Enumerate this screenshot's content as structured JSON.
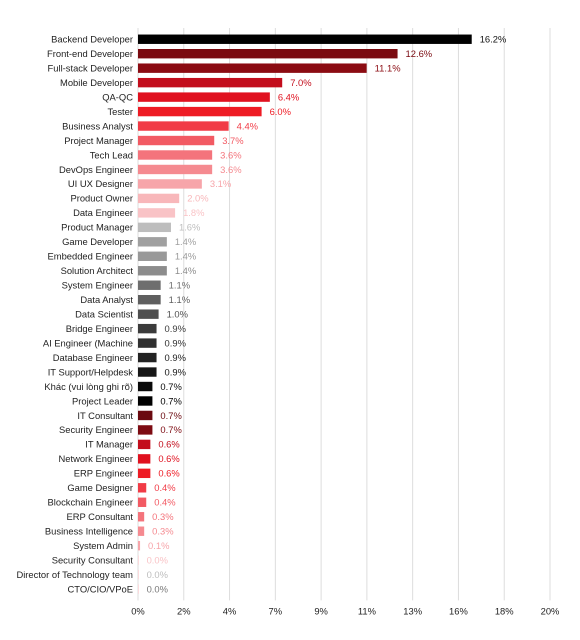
{
  "chart_data": {
    "type": "bar",
    "orientation": "horizontal",
    "title": "",
    "xlabel": "",
    "ylabel": "",
    "xlim": [
      0,
      20
    ],
    "x_ticks": [
      "0%",
      "2%",
      "4%",
      "7%",
      "9%",
      "11%",
      "13%",
      "16%",
      "18%",
      "20%"
    ],
    "grid": true,
    "legend": "none",
    "categories": [
      "Backend Developer",
      "Front-end Developer",
      "Full-stack Developer",
      "Mobile Developer",
      "QA-QC",
      "Tester",
      "Business Analyst",
      "Project Manager",
      "Tech Lead",
      "DevOps Engineer",
      "UI UX Designer",
      "Product Owner",
      "Data Engineer",
      "Product Manager",
      "Game Developer",
      "Embedded Engineer",
      "Solution Architect",
      "System Engineer",
      "Data Analyst",
      "Data Scientist",
      "Bridge Engineer",
      "AI Engineer (Machine",
      "Database Engineer",
      "IT Support/Helpdesk",
      "Khác (vui lòng ghi rõ)",
      "Project Leader",
      "IT Consultant",
      "Security Engineer",
      "IT Manager",
      "Network Engineer",
      "ERP Engineer",
      "Game Designer",
      "Blockchain Engineer",
      "ERP Consultant",
      "Business Intelligence",
      "System Admin",
      "Security Consultant",
      "Director of Technology team",
      "CTO/CIO/VPoE"
    ],
    "values": [
      16.2,
      12.6,
      11.1,
      7.0,
      6.4,
      6.0,
      4.4,
      3.7,
      3.6,
      3.6,
      3.1,
      2.0,
      1.8,
      1.6,
      1.4,
      1.4,
      1.4,
      1.1,
      1.1,
      1.0,
      0.9,
      0.9,
      0.9,
      0.9,
      0.7,
      0.7,
      0.7,
      0.7,
      0.6,
      0.6,
      0.6,
      0.4,
      0.4,
      0.3,
      0.3,
      0.1,
      0.0,
      0.0,
      0.0
    ],
    "value_labels": [
      "16.2%",
      "12.6%",
      "11.1%",
      "7.0%",
      "6.4%",
      "6.0%",
      "4.4%",
      "3.7%",
      "3.6%",
      "3.6%",
      "3.1%",
      "2.0%",
      "1.8%",
      "1.6%",
      "1.4%",
      "1.4%",
      "1.4%",
      "1.1%",
      "1.1%",
      "1.0%",
      "0.9%",
      "0.9%",
      "0.9%",
      "0.9%",
      "0.7%",
      "0.7%",
      "0.7%",
      "0.7%",
      "0.6%",
      "0.6%",
      "0.6%",
      "0.4%",
      "0.4%",
      "0.3%",
      "0.3%",
      "0.1%",
      "0.0%",
      "0.0%",
      "0.0%"
    ],
    "bar_colors": [
      "#000000",
      "#7a0a10",
      "#8b0b12",
      "#c30d1c",
      "#e0111f",
      "#ee1b24",
      "#f13b46",
      "#f25a63",
      "#f4747c",
      "#f58a90",
      "#f7a5aa",
      "#f8b7ba",
      "#f9c3c6",
      "#bdbdbd",
      "#a0a0a0",
      "#999999",
      "#8c8c8c",
      "#6e6e6e",
      "#5f5f5f",
      "#4f4f4f",
      "#3b3b3b",
      "#2f2f2f",
      "#222222",
      "#161616",
      "#0a0a0a",
      "#000000",
      "#6b0a10",
      "#7d0b12",
      "#c30d1c",
      "#e0111f",
      "#ee1b24",
      "#f13b46",
      "#f25a63",
      "#f4747c",
      "#f58a90",
      "#f7a5aa",
      "#f9c3c6",
      "#f9c3c6",
      "#f9c3c6"
    ],
    "label_colors": [
      "#111111",
      "#7a0a10",
      "#8b0b12",
      "#c30d1c",
      "#e0111f",
      "#ee1b24",
      "#f13b46",
      "#f25a63",
      "#f4747c",
      "#f58a90",
      "#f7a5aa",
      "#f8b7ba",
      "#f9c3c6",
      "#bdbdbd",
      "#a0a0a0",
      "#999999",
      "#8c8c8c",
      "#6e6e6e",
      "#5f5f5f",
      "#4f4f4f",
      "#3b3b3b",
      "#2f2f2f",
      "#222222",
      "#161616",
      "#0a0a0a",
      "#000000",
      "#6b0a10",
      "#7d0b12",
      "#c30d1c",
      "#e0111f",
      "#ee1b24",
      "#f13b46",
      "#f25a63",
      "#f4747c",
      "#f58a90",
      "#f7a5aa",
      "#f9c3c6",
      "#bdbdbd",
      "#777777"
    ],
    "grid_color": "#dddddd"
  }
}
